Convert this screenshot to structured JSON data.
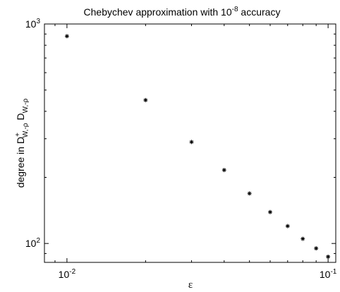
{
  "chart_data": {
    "type": "scatter",
    "title": "Chebychev approximation with 10",
    "title_exponent": "-8",
    "title_suffix": " accuracy",
    "xlabel": "ε",
    "ylabel": {
      "prefix": "degree in D",
      "sup1": "+",
      "sub1": "W,-ρ",
      "mid": " D",
      "sub2": "W,-ρ"
    },
    "x_scale": "log",
    "y_scale": "log",
    "xlim": [
      0.0082,
      0.107
    ],
    "ylim": [
      82,
      1000
    ],
    "x_ticks": [
      {
        "value": 0.01,
        "base": "10",
        "exp": "-2"
      },
      {
        "value": 0.1,
        "base": "10",
        "exp": "-1"
      }
    ],
    "y_ticks": [
      {
        "value": 100,
        "base": "10",
        "exp": "2"
      },
      {
        "value": 1000,
        "base": "10",
        "exp": "3"
      }
    ],
    "grid": false,
    "marker": "*",
    "series": [
      {
        "x": [
          0.01,
          0.02,
          0.03,
          0.04,
          0.05,
          0.06,
          0.07,
          0.08,
          0.09,
          0.1
        ],
        "y": [
          880,
          450,
          290,
          216,
          169,
          139,
          120,
          105,
          95,
          87
        ]
      }
    ]
  }
}
